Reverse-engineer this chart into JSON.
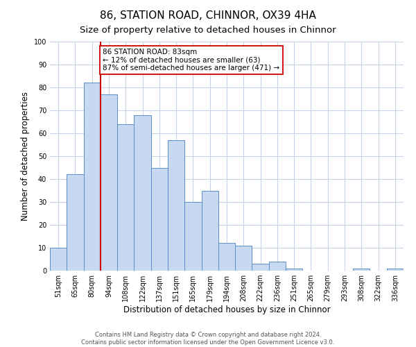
{
  "title": "86, STATION ROAD, CHINNOR, OX39 4HA",
  "subtitle": "Size of property relative to detached houses in Chinnor",
  "xlabel": "Distribution of detached houses by size in Chinnor",
  "ylabel": "Number of detached properties",
  "bar_labels": [
    "51sqm",
    "65sqm",
    "80sqm",
    "94sqm",
    "108sqm",
    "122sqm",
    "137sqm",
    "151sqm",
    "165sqm",
    "179sqm",
    "194sqm",
    "208sqm",
    "222sqm",
    "236sqm",
    "251sqm",
    "265sqm",
    "279sqm",
    "293sqm",
    "308sqm",
    "322sqm",
    "336sqm"
  ],
  "bar_values": [
    10,
    42,
    82,
    77,
    64,
    68,
    45,
    57,
    30,
    35,
    12,
    11,
    3,
    4,
    1,
    0,
    0,
    0,
    1,
    0,
    1
  ],
  "bar_color": "#c6d9f0",
  "bar_edge_color": "#5b8dc8",
  "property_line_label": "86 STATION ROAD: 83sqm",
  "annotation_line1": "← 12% of detached houses are smaller (63)",
  "annotation_line2": "87% of semi-detached houses are larger (471) →",
  "annotation_box_color": "#ffffff",
  "annotation_box_edge": "#cc0000",
  "vline_color": "#cc0000",
  "vline_x": 2.5,
  "ylim": [
    0,
    100
  ],
  "yticks": [
    0,
    10,
    20,
    30,
    40,
    50,
    60,
    70,
    80,
    90,
    100
  ],
  "footer1": "Contains HM Land Registry data © Crown copyright and database right 2024.",
  "footer2": "Contains public sector information licensed under the Open Government Licence v3.0.",
  "bg_color": "#ffffff",
  "grid_color": "#c8d4e8",
  "title_fontsize": 11,
  "subtitle_fontsize": 9.5,
  "axis_label_fontsize": 8.5,
  "tick_fontsize": 7,
  "annot_fontsize": 7.5,
  "footer_fontsize": 6
}
